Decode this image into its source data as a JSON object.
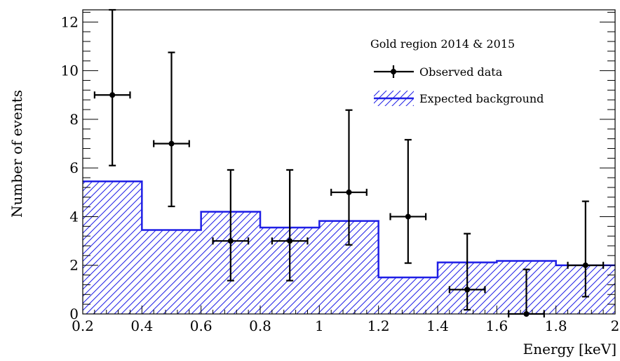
{
  "chart_data": {
    "type": "histogram",
    "title": "",
    "xlabel": "Energy [keV]",
    "ylabel": "Number of events",
    "xlim": [
      0.2,
      2.0
    ],
    "ylim": [
      0,
      12.5
    ],
    "x_ticks": [
      {
        "value": 0.2,
        "label": "0.2"
      },
      {
        "value": 0.4,
        "label": "0.4"
      },
      {
        "value": 0.6,
        "label": "0.6"
      },
      {
        "value": 0.8,
        "label": "0.8"
      },
      {
        "value": 1.0,
        "label": "1"
      },
      {
        "value": 1.2,
        "label": "1.2"
      },
      {
        "value": 1.4,
        "label": "1.4"
      },
      {
        "value": 1.6,
        "label": "1.6"
      },
      {
        "value": 1.8,
        "label": "1.8"
      },
      {
        "value": 2.0,
        "label": "2"
      }
    ],
    "y_ticks": [
      {
        "value": 0,
        "label": "0"
      },
      {
        "value": 2,
        "label": "2"
      },
      {
        "value": 4,
        "label": "4"
      },
      {
        "value": 6,
        "label": "6"
      },
      {
        "value": 8,
        "label": "8"
      },
      {
        "value": 10,
        "label": "10"
      },
      {
        "value": 12,
        "label": "12"
      }
    ],
    "legend": {
      "title": "Gold region 2014 & 2015",
      "placement": "top-right"
    },
    "series": [
      {
        "name": "Expected background",
        "kind": "step-hatched",
        "color": "#1f1fe6",
        "bin_edges": [
          0.2,
          0.4,
          0.6,
          0.8,
          1.0,
          1.2,
          1.4,
          1.6,
          1.8,
          2.0
        ],
        "values": [
          5.45,
          3.45,
          4.2,
          3.55,
          3.82,
          1.5,
          2.12,
          2.18,
          2.0
        ]
      },
      {
        "name": "Observed data",
        "kind": "points-errorbars",
        "color": "#000000",
        "x": [
          0.3,
          0.5,
          0.7,
          0.9,
          1.1,
          1.3,
          1.5,
          1.7,
          1.9
        ],
        "y": [
          9,
          7,
          3,
          3,
          5,
          4,
          1,
          0,
          2
        ],
        "x_err": 0.06,
        "y_err_low": [
          2.9,
          2.58,
          1.63,
          1.63,
          2.16,
          1.91,
          0.83,
          0,
          1.29
        ],
        "y_err_high": [
          3.52,
          3.75,
          2.92,
          2.92,
          3.38,
          3.16,
          2.3,
          1.83,
          2.63
        ]
      }
    ]
  }
}
